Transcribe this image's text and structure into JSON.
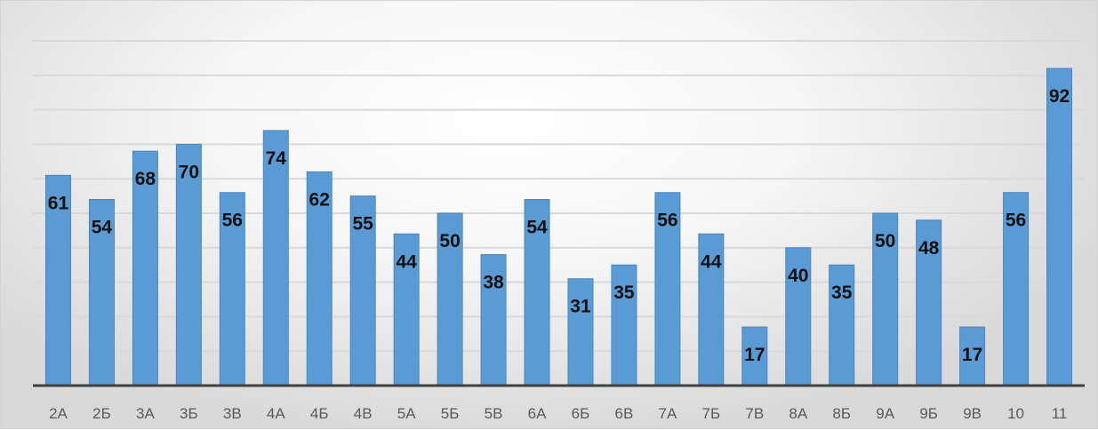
{
  "chart_data": {
    "type": "bar",
    "categories": [
      "2А",
      "2Б",
      "3А",
      "3Б",
      "3В",
      "4А",
      "4Б",
      "4В",
      "5А",
      "5Б",
      "5В",
      "6А",
      "6Б",
      "6В",
      "7А",
      "7Б",
      "7В",
      "8А",
      "8Б",
      "9А",
      "9Б",
      "9В",
      "10",
      "11"
    ],
    "values": [
      61,
      54,
      68,
      70,
      56,
      74,
      62,
      55,
      44,
      50,
      38,
      54,
      31,
      35,
      56,
      44,
      17,
      40,
      35,
      50,
      48,
      17,
      56,
      92
    ],
    "title": "",
    "xlabel": "",
    "ylabel": "",
    "ylim": [
      0,
      100
    ],
    "grid": true,
    "legend": "none",
    "colors": {
      "bar": "#5b9bd5",
      "bar_edge": "#4a86c0",
      "grid": "#d9d9d9",
      "axis": "#404040",
      "label": "#111111",
      "tick": "#595959"
    }
  }
}
